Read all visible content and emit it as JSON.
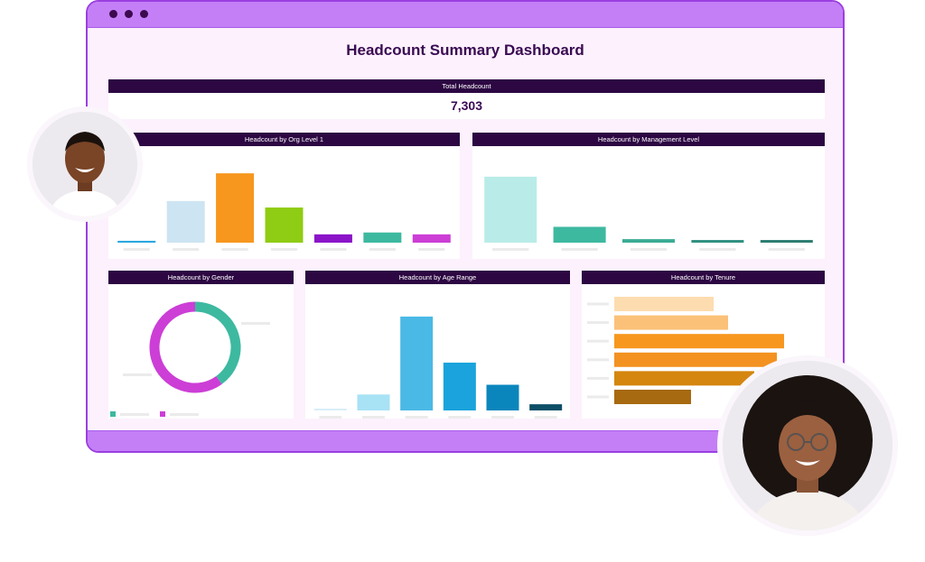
{
  "dashboard": {
    "title": "Headcount Summary Dashboard",
    "total": {
      "header": "Total Headcount",
      "value": "7,303"
    }
  },
  "colors": {
    "accent": "#c47ff7",
    "header_bg": "#2c0742",
    "title": "#3a0a52"
  },
  "chart_data": [
    {
      "type": "bar",
      "title": "Headcount by Org Level 1",
      "categories": [
        "",
        "",
        "",
        "",
        "",
        "",
        ""
      ],
      "values": [
        2,
        45,
        75,
        38,
        9,
        11,
        9
      ],
      "colors": [
        "#29a8e0",
        "#cde4f2",
        "#f7971e",
        "#8fcc14",
        "#8b14c9",
        "#3db9a0",
        "#cc3ed6"
      ],
      "ylim": [
        0,
        80
      ]
    },
    {
      "type": "bar",
      "title": "Headcount by Management Level",
      "categories": [
        "",
        "",
        "",
        "",
        ""
      ],
      "values": [
        75,
        18,
        4,
        3,
        3
      ],
      "colors": [
        "#b9ece8",
        "#3db9a0",
        "#3aab95",
        "#2f8f80",
        "#2a7d70"
      ],
      "ylim": [
        0,
        80
      ]
    },
    {
      "type": "pie",
      "title": "Headcount by Gender",
      "labels": [
        "",
        ""
      ],
      "values": [
        40,
        60
      ],
      "colors": [
        "#3db9a0",
        "#cc3ed6"
      ]
    },
    {
      "type": "bar",
      "title": "Headcount by Age Range",
      "categories": [
        "",
        "",
        "",
        "",
        "",
        ""
      ],
      "values": [
        1,
        18,
        106,
        54,
        29,
        7
      ],
      "colors": [
        "#d8eef8",
        "#a8e2f5",
        "#4ab9e6",
        "#1aa3dc",
        "#0b86bd",
        "#0d4f66"
      ],
      "ylim": [
        0,
        110
      ]
    },
    {
      "type": "bar",
      "orientation": "horizontal",
      "title": "Headcount by Tenure",
      "categories": [
        "",
        "",
        "",
        "",
        "",
        ""
      ],
      "values": [
        110,
        126,
        188,
        180,
        155,
        85
      ],
      "colors": [
        "#fddcb0",
        "#fbc178",
        "#f7971e",
        "#f39221",
        "#d4860f",
        "#a86a10"
      ],
      "xlim": [
        0,
        200
      ]
    }
  ]
}
